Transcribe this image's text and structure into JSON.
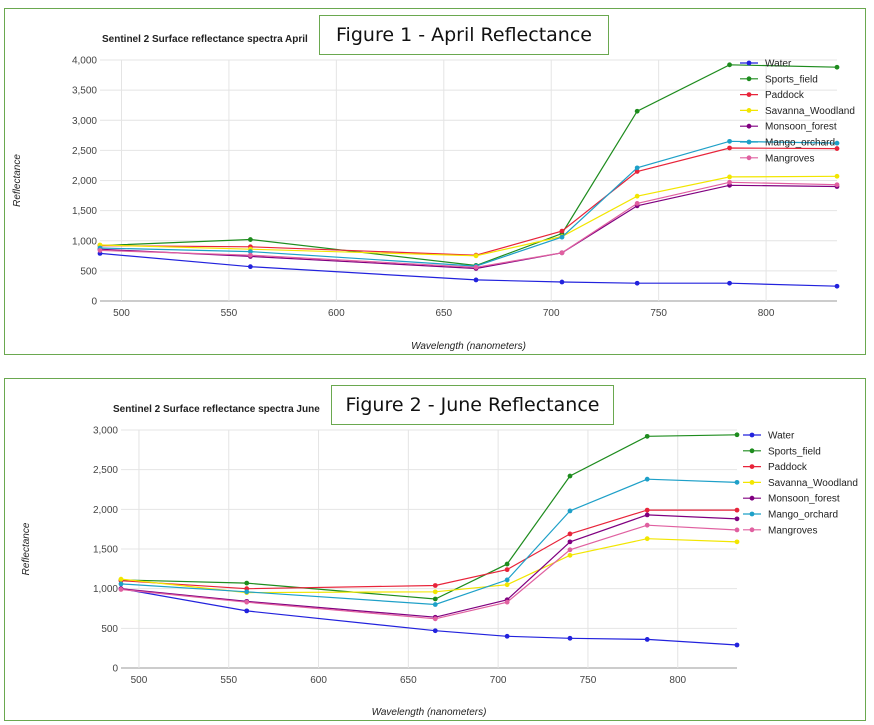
{
  "chart_data": [
    {
      "type": "line",
      "title": "Sentinel 2 Surface reflectance spectra April",
      "figure_label": "Figure 1 - April Reflectance",
      "xlabel": "Wavelength (nanometers)",
      "ylabel": "Reflectance",
      "xlim": [
        490,
        833
      ],
      "ylim": [
        0,
        4000
      ],
      "xticks": [
        500,
        550,
        600,
        650,
        700,
        750,
        800
      ],
      "yticks": [
        0,
        500,
        1000,
        1500,
        2000,
        2500,
        3000,
        3500,
        4000
      ],
      "ytick_labels": [
        "0",
        "500",
        "1,000",
        "1,500",
        "2,000",
        "2,500",
        "3,000",
        "3,500",
        "4,000"
      ],
      "x": [
        490,
        560,
        665,
        705,
        740,
        783,
        833
      ],
      "legend_position": "right",
      "series": [
        {
          "name": "Water",
          "color": "#2222dd",
          "values": [
            790,
            570,
            350,
            315,
            295,
            295,
            245
          ]
        },
        {
          "name": "Sports_field",
          "color": "#1e8c1e",
          "values": [
            920,
            1020,
            590,
            1120,
            3150,
            3920,
            3880
          ]
        },
        {
          "name": "Paddock",
          "color": "#e8243a",
          "values": [
            920,
            900,
            760,
            1160,
            2150,
            2540,
            2530
          ]
        },
        {
          "name": "Savanna_Woodland",
          "color": "#f2e600",
          "values": [
            930,
            860,
            750,
            1070,
            1740,
            2060,
            2070
          ]
        },
        {
          "name": "Monsoon_forest",
          "color": "#800080",
          "values": [
            860,
            740,
            540,
            800,
            1580,
            1920,
            1900
          ]
        },
        {
          "name": "Mango_orchard",
          "color": "#1ea0c8",
          "values": [
            880,
            820,
            580,
            1060,
            2210,
            2650,
            2620
          ]
        },
        {
          "name": "Mangroves",
          "color": "#e060a0",
          "values": [
            840,
            760,
            560,
            800,
            1620,
            1970,
            1930
          ]
        }
      ]
    },
    {
      "type": "line",
      "title": "Sentinel 2 Surface reflectance spectra June",
      "figure_label": "Figure 2 - June Reflectance",
      "xlabel": "Wavelength (nanometers)",
      "ylabel": "Reflectance",
      "xlim": [
        490,
        833
      ],
      "ylim": [
        0,
        3000
      ],
      "xticks": [
        500,
        550,
        600,
        650,
        700,
        750,
        800
      ],
      "yticks": [
        0,
        500,
        1000,
        1500,
        2000,
        2500,
        3000
      ],
      "ytick_labels": [
        "0",
        "500",
        "1,000",
        "1,500",
        "2,000",
        "2,500",
        "3,000"
      ],
      "x": [
        490,
        560,
        665,
        705,
        740,
        783,
        833
      ],
      "legend_position": "right",
      "series": [
        {
          "name": "Water",
          "color": "#2222dd",
          "values": [
            1000,
            720,
            470,
            400,
            375,
            360,
            290
          ]
        },
        {
          "name": "Sports_field",
          "color": "#1e8c1e",
          "values": [
            1110,
            1070,
            870,
            1310,
            2420,
            2920,
            2940
          ]
        },
        {
          "name": "Paddock",
          "color": "#e8243a",
          "values": [
            1100,
            1000,
            1040,
            1240,
            1690,
            1990,
            1990
          ]
        },
        {
          "name": "Savanna_Woodland",
          "color": "#f2e600",
          "values": [
            1120,
            950,
            960,
            1050,
            1420,
            1630,
            1590
          ]
        },
        {
          "name": "Monsoon_forest",
          "color": "#800080",
          "values": [
            1000,
            840,
            640,
            860,
            1590,
            1930,
            1880
          ]
        },
        {
          "name": "Mango_orchard",
          "color": "#1ea0c8",
          "values": [
            1060,
            960,
            800,
            1110,
            1980,
            2380,
            2340
          ]
        },
        {
          "name": "Mangroves",
          "color": "#e060a0",
          "values": [
            990,
            830,
            620,
            830,
            1490,
            1800,
            1740
          ]
        }
      ]
    }
  ]
}
